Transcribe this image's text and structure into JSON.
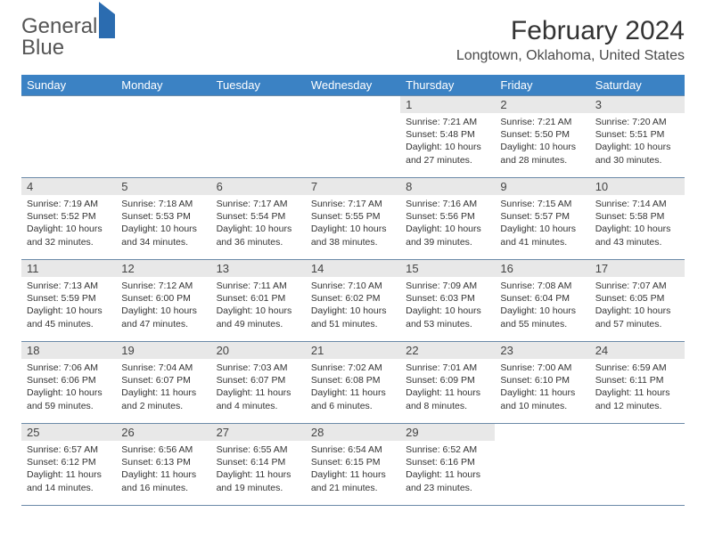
{
  "brand": {
    "word1": "General",
    "word2": "Blue"
  },
  "title": "February 2024",
  "location": "Longtown, Oklahoma, United States",
  "colors": {
    "header_bg": "#3b82c4",
    "header_text": "#ffffff",
    "daynum_bg": "#e8e8e8",
    "rule": "#6b8aa8",
    "brand_blue": "#3b7bbf"
  },
  "weekdays": [
    "Sunday",
    "Monday",
    "Tuesday",
    "Wednesday",
    "Thursday",
    "Friday",
    "Saturday"
  ],
  "weeks": [
    [
      {
        "n": "",
        "sr": "",
        "ss": "",
        "dl": ""
      },
      {
        "n": "",
        "sr": "",
        "ss": "",
        "dl": ""
      },
      {
        "n": "",
        "sr": "",
        "ss": "",
        "dl": ""
      },
      {
        "n": "",
        "sr": "",
        "ss": "",
        "dl": ""
      },
      {
        "n": "1",
        "sr": "Sunrise: 7:21 AM",
        "ss": "Sunset: 5:48 PM",
        "dl": "Daylight: 10 hours and 27 minutes."
      },
      {
        "n": "2",
        "sr": "Sunrise: 7:21 AM",
        "ss": "Sunset: 5:50 PM",
        "dl": "Daylight: 10 hours and 28 minutes."
      },
      {
        "n": "3",
        "sr": "Sunrise: 7:20 AM",
        "ss": "Sunset: 5:51 PM",
        "dl": "Daylight: 10 hours and 30 minutes."
      }
    ],
    [
      {
        "n": "4",
        "sr": "Sunrise: 7:19 AM",
        "ss": "Sunset: 5:52 PM",
        "dl": "Daylight: 10 hours and 32 minutes."
      },
      {
        "n": "5",
        "sr": "Sunrise: 7:18 AM",
        "ss": "Sunset: 5:53 PM",
        "dl": "Daylight: 10 hours and 34 minutes."
      },
      {
        "n": "6",
        "sr": "Sunrise: 7:17 AM",
        "ss": "Sunset: 5:54 PM",
        "dl": "Daylight: 10 hours and 36 minutes."
      },
      {
        "n": "7",
        "sr": "Sunrise: 7:17 AM",
        "ss": "Sunset: 5:55 PM",
        "dl": "Daylight: 10 hours and 38 minutes."
      },
      {
        "n": "8",
        "sr": "Sunrise: 7:16 AM",
        "ss": "Sunset: 5:56 PM",
        "dl": "Daylight: 10 hours and 39 minutes."
      },
      {
        "n": "9",
        "sr": "Sunrise: 7:15 AM",
        "ss": "Sunset: 5:57 PM",
        "dl": "Daylight: 10 hours and 41 minutes."
      },
      {
        "n": "10",
        "sr": "Sunrise: 7:14 AM",
        "ss": "Sunset: 5:58 PM",
        "dl": "Daylight: 10 hours and 43 minutes."
      }
    ],
    [
      {
        "n": "11",
        "sr": "Sunrise: 7:13 AM",
        "ss": "Sunset: 5:59 PM",
        "dl": "Daylight: 10 hours and 45 minutes."
      },
      {
        "n": "12",
        "sr": "Sunrise: 7:12 AM",
        "ss": "Sunset: 6:00 PM",
        "dl": "Daylight: 10 hours and 47 minutes."
      },
      {
        "n": "13",
        "sr": "Sunrise: 7:11 AM",
        "ss": "Sunset: 6:01 PM",
        "dl": "Daylight: 10 hours and 49 minutes."
      },
      {
        "n": "14",
        "sr": "Sunrise: 7:10 AM",
        "ss": "Sunset: 6:02 PM",
        "dl": "Daylight: 10 hours and 51 minutes."
      },
      {
        "n": "15",
        "sr": "Sunrise: 7:09 AM",
        "ss": "Sunset: 6:03 PM",
        "dl": "Daylight: 10 hours and 53 minutes."
      },
      {
        "n": "16",
        "sr": "Sunrise: 7:08 AM",
        "ss": "Sunset: 6:04 PM",
        "dl": "Daylight: 10 hours and 55 minutes."
      },
      {
        "n": "17",
        "sr": "Sunrise: 7:07 AM",
        "ss": "Sunset: 6:05 PM",
        "dl": "Daylight: 10 hours and 57 minutes."
      }
    ],
    [
      {
        "n": "18",
        "sr": "Sunrise: 7:06 AM",
        "ss": "Sunset: 6:06 PM",
        "dl": "Daylight: 10 hours and 59 minutes."
      },
      {
        "n": "19",
        "sr": "Sunrise: 7:04 AM",
        "ss": "Sunset: 6:07 PM",
        "dl": "Daylight: 11 hours and 2 minutes."
      },
      {
        "n": "20",
        "sr": "Sunrise: 7:03 AM",
        "ss": "Sunset: 6:07 PM",
        "dl": "Daylight: 11 hours and 4 minutes."
      },
      {
        "n": "21",
        "sr": "Sunrise: 7:02 AM",
        "ss": "Sunset: 6:08 PM",
        "dl": "Daylight: 11 hours and 6 minutes."
      },
      {
        "n": "22",
        "sr": "Sunrise: 7:01 AM",
        "ss": "Sunset: 6:09 PM",
        "dl": "Daylight: 11 hours and 8 minutes."
      },
      {
        "n": "23",
        "sr": "Sunrise: 7:00 AM",
        "ss": "Sunset: 6:10 PM",
        "dl": "Daylight: 11 hours and 10 minutes."
      },
      {
        "n": "24",
        "sr": "Sunrise: 6:59 AM",
        "ss": "Sunset: 6:11 PM",
        "dl": "Daylight: 11 hours and 12 minutes."
      }
    ],
    [
      {
        "n": "25",
        "sr": "Sunrise: 6:57 AM",
        "ss": "Sunset: 6:12 PM",
        "dl": "Daylight: 11 hours and 14 minutes."
      },
      {
        "n": "26",
        "sr": "Sunrise: 6:56 AM",
        "ss": "Sunset: 6:13 PM",
        "dl": "Daylight: 11 hours and 16 minutes."
      },
      {
        "n": "27",
        "sr": "Sunrise: 6:55 AM",
        "ss": "Sunset: 6:14 PM",
        "dl": "Daylight: 11 hours and 19 minutes."
      },
      {
        "n": "28",
        "sr": "Sunrise: 6:54 AM",
        "ss": "Sunset: 6:15 PM",
        "dl": "Daylight: 11 hours and 21 minutes."
      },
      {
        "n": "29",
        "sr": "Sunrise: 6:52 AM",
        "ss": "Sunset: 6:16 PM",
        "dl": "Daylight: 11 hours and 23 minutes."
      },
      {
        "n": "",
        "sr": "",
        "ss": "",
        "dl": ""
      },
      {
        "n": "",
        "sr": "",
        "ss": "",
        "dl": ""
      }
    ]
  ]
}
